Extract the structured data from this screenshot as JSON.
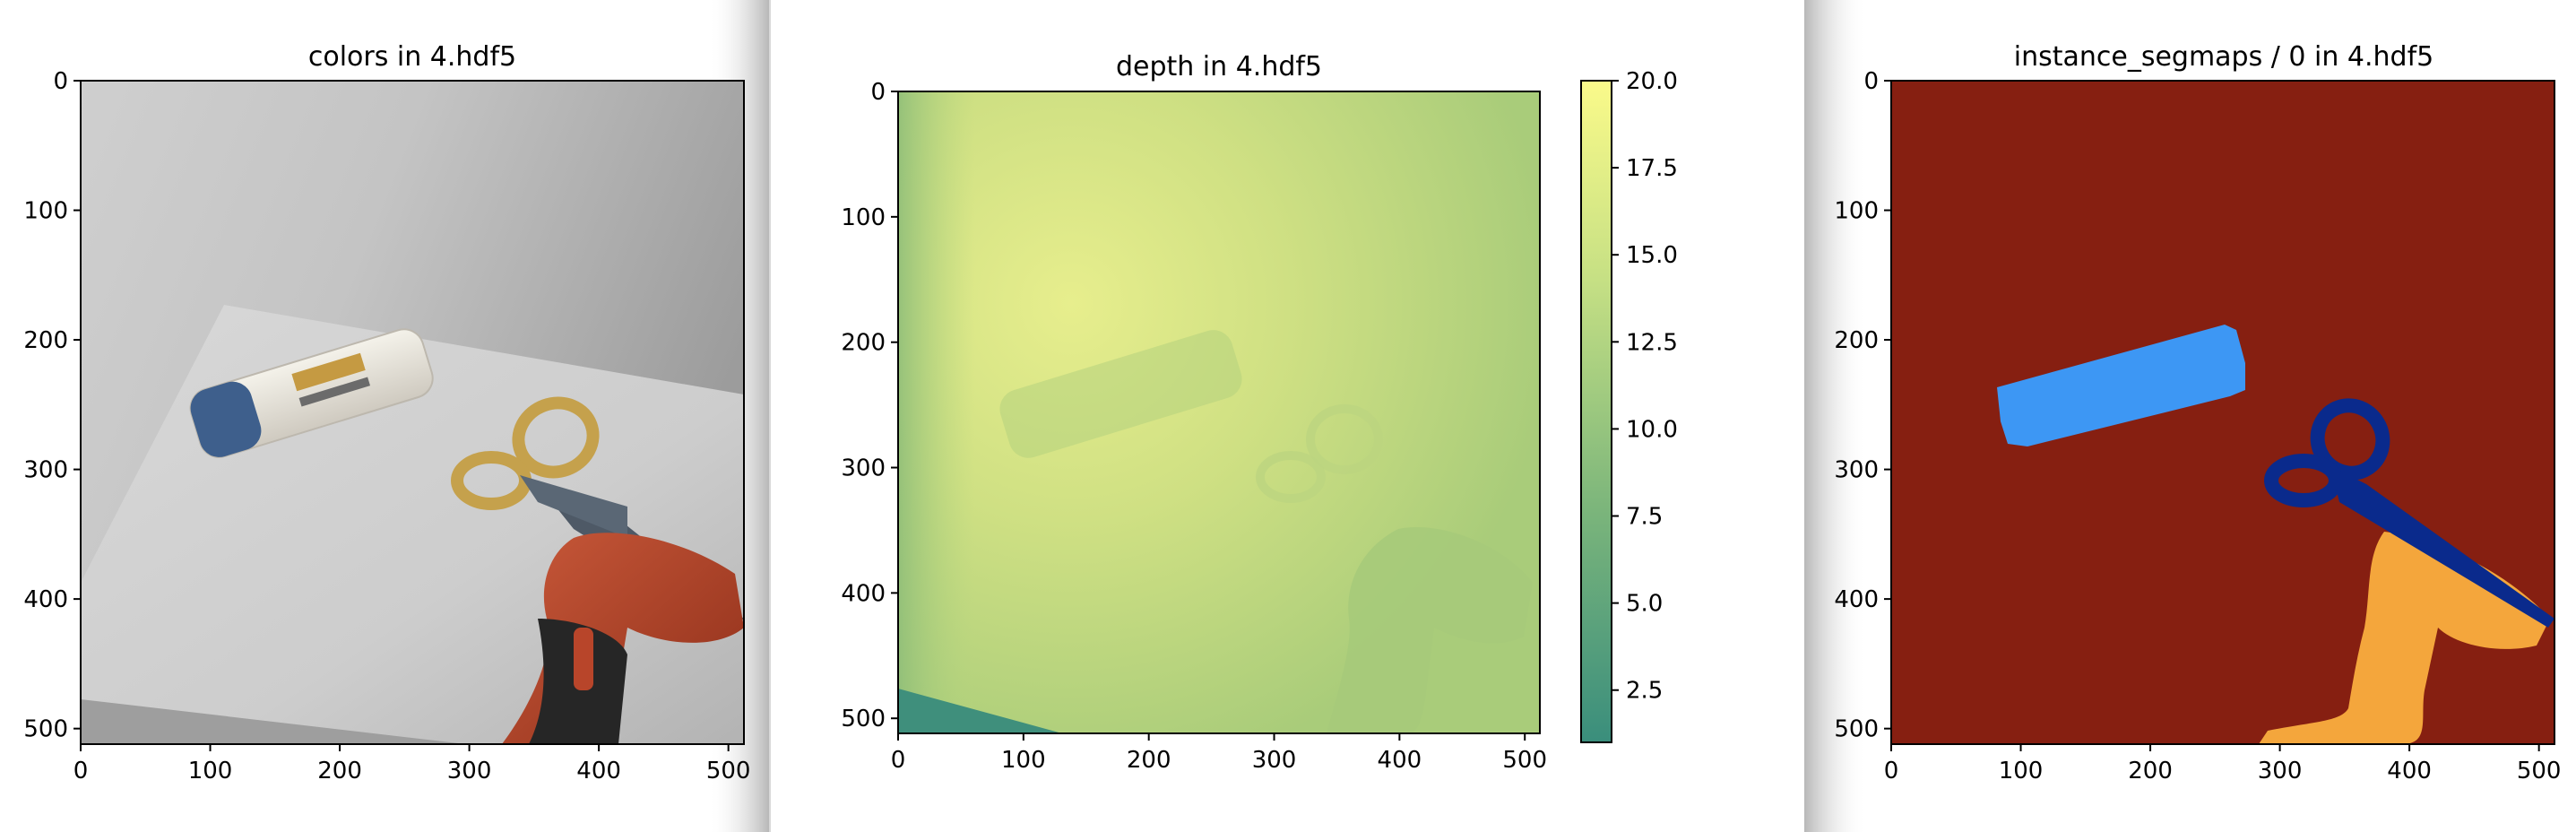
{
  "figure": {
    "panels": [
      {
        "title": "colors in 4.hdf5"
      },
      {
        "title": "depth in 4.hdf5"
      },
      {
        "title": "instance_segmaps / 0 in 4.hdf5"
      }
    ]
  },
  "chart_data": [
    {
      "type": "heatmap",
      "title": "colors in 4.hdf5",
      "xlabel": "",
      "ylabel": "",
      "xlim": [
        0,
        512
      ],
      "ylim": [
        512,
        0
      ],
      "xticks": [
        0,
        100,
        200,
        300,
        400,
        500
      ],
      "yticks": [
        0,
        100,
        200,
        300,
        400,
        500
      ],
      "content": "rgb image",
      "objects": [
        "shampoo-bottle",
        "scissors",
        "power-drill"
      ]
    },
    {
      "type": "heatmap",
      "title": "depth in 4.hdf5",
      "xlabel": "",
      "ylabel": "",
      "xlim": [
        0,
        512
      ],
      "ylim": [
        512,
        0
      ],
      "xticks": [
        0,
        100,
        200,
        300,
        400,
        500
      ],
      "yticks": [
        0,
        100,
        200,
        300,
        400,
        500
      ],
      "colorbar": {
        "range": [
          1.0,
          20.0
        ],
        "ticks": [
          2.5,
          5.0,
          7.5,
          10.0,
          12.5,
          15.0,
          17.5,
          20.0
        ],
        "tick_labels": [
          "2.5",
          "5.0",
          "7.5",
          "10.0",
          "12.5",
          "15.0",
          "17.5",
          "20.0"
        ],
        "colormap": "summer",
        "colors": [
          "#3a8e7c",
          "#9cc47c",
          "#e7ee8d",
          "#fafa8a"
        ]
      }
    },
    {
      "type": "heatmap",
      "title": "instance_segmaps / 0 in 4.hdf5",
      "xlabel": "",
      "ylabel": "",
      "xlim": [
        0,
        512
      ],
      "ylim": [
        512,
        0
      ],
      "xticks": [
        0,
        100,
        200,
        300,
        400,
        500
      ],
      "yticks": [
        0,
        100,
        200,
        300,
        400,
        500
      ],
      "colors": {
        "background": "#861f11",
        "bottle": "#3d97f4",
        "scissors": "#0a2a8c",
        "drill": "#f4a63c"
      }
    }
  ]
}
